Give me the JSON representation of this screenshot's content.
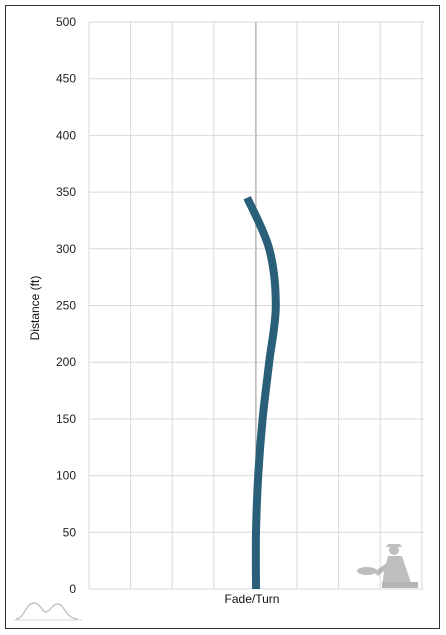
{
  "chart_data": {
    "type": "line",
    "xlabel": "Fade/Turn",
    "ylabel": "Distance (ft)",
    "ylim": [
      0,
      500
    ],
    "yticks": [
      "0",
      "50",
      "100",
      "150",
      "200",
      "250",
      "300",
      "350",
      "400",
      "450",
      "500"
    ],
    "grid": true,
    "series": [
      {
        "color": "#2a5f7a",
        "points": [
          {
            "x": 0.0,
            "y": 0
          },
          {
            "x": 0.0,
            "y": 50
          },
          {
            "x": 0.1,
            "y": 100
          },
          {
            "x": 0.3,
            "y": 150
          },
          {
            "x": 0.6,
            "y": 200
          },
          {
            "x": 0.9,
            "y": 250
          },
          {
            "x": 0.6,
            "y": 300
          },
          {
            "x": -0.4,
            "y": 345
          }
        ]
      }
    ]
  },
  "branding": {
    "logo_left_icon": "flight-path-logo-icon",
    "logo_right_icon": "disc-golfer-watermark-icon"
  }
}
